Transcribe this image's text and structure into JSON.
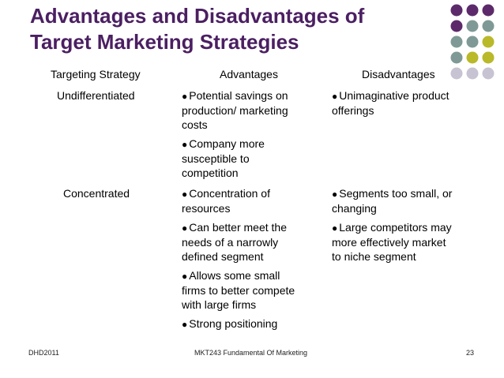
{
  "slide": {
    "title_line1": "Advantages and Disadvantages of",
    "title_line2": "Target Marketing Strategies"
  },
  "table": {
    "headers": [
      "Targeting Strategy",
      "Advantages",
      "Disadvantages"
    ],
    "rows": [
      {
        "strategy": "Undifferentiated",
        "advantages": [
          [
            "Potential savings on",
            "production/ marketing",
            "costs"
          ],
          [
            "Company more",
            "susceptible to",
            "competition"
          ]
        ],
        "disadvantages": [
          [
            "Unimaginative product",
            "offerings"
          ]
        ]
      },
      {
        "strategy": "Concentrated",
        "advantages": [
          [
            "Concentration of",
            "resources"
          ],
          [
            "Can better meet the",
            "needs of a narrowly",
            "defined segment"
          ],
          [
            "Allows some small",
            "firms to better compete",
            "with large firms"
          ],
          [
            "Strong positioning"
          ]
        ],
        "disadvantages": [
          [
            "Segments too small, or",
            "changing"
          ],
          [
            "Large competitors may",
            "more effectively market",
            "to niche segment"
          ]
        ]
      }
    ]
  },
  "footer": {
    "left": "DHD2011",
    "center": "MKT243   Fundamental Of Marketing",
    "page": "23"
  },
  "colors": {
    "title": "#4b1f62",
    "dot_purple": "#5c2a6b",
    "dot_teal": "#7f9a96",
    "dot_olive": "#b9b92a",
    "dot_lavender": "#c8c3d3"
  }
}
